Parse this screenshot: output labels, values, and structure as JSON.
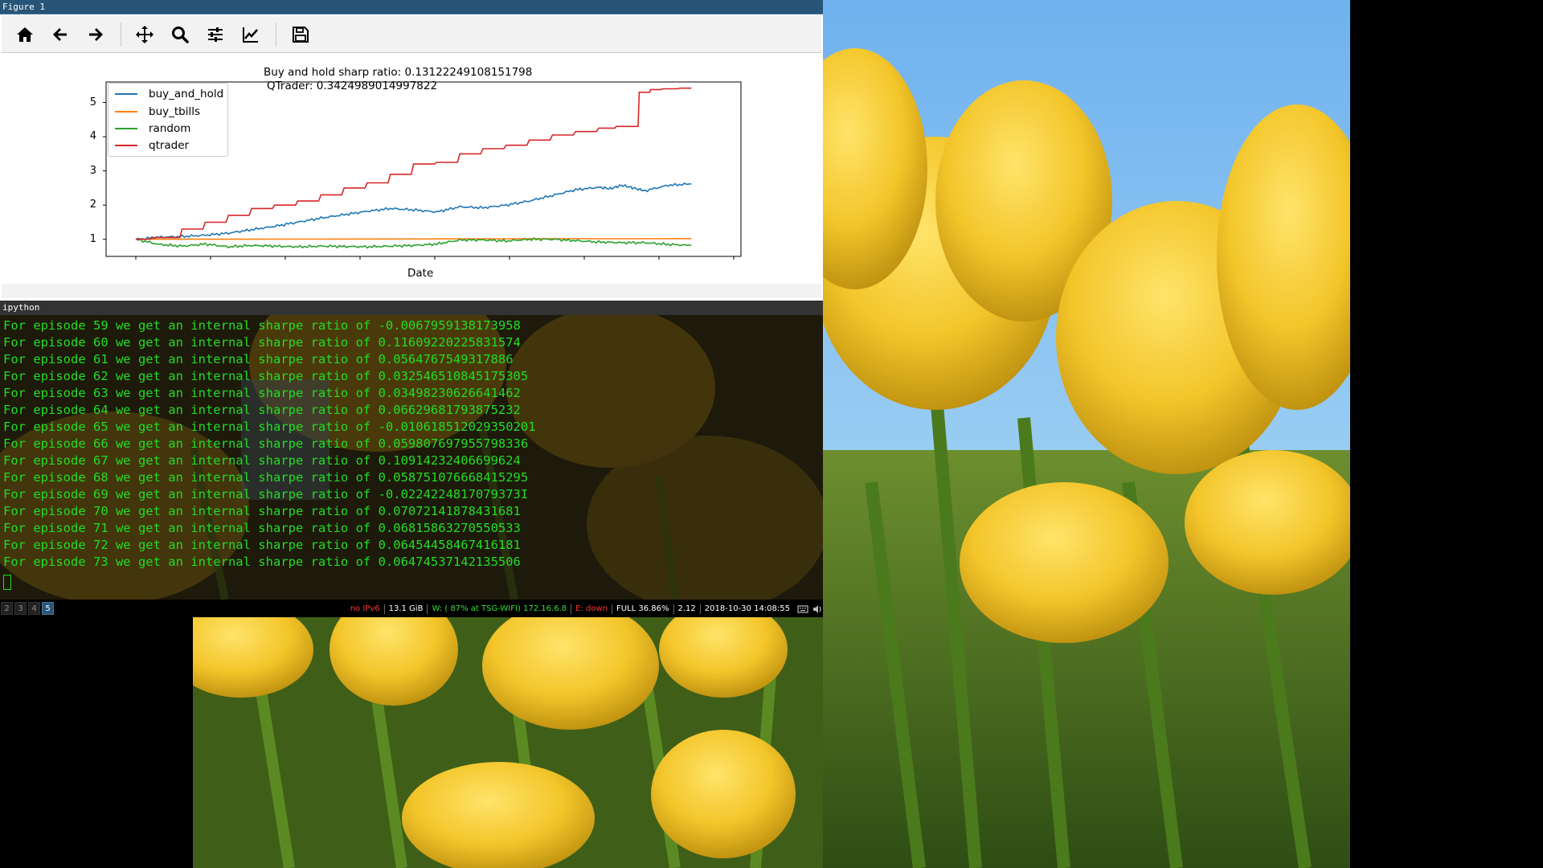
{
  "figure_window": {
    "title": "Figure 1",
    "toolbar": [
      {
        "icon": "home-icon",
        "label": "Home"
      },
      {
        "icon": "back-arrow-icon",
        "label": "Back"
      },
      {
        "icon": "forward-arrow-icon",
        "label": "Forward"
      },
      {
        "icon": "pan-move-icon",
        "label": "Pan"
      },
      {
        "icon": "zoom-magnifier-icon",
        "label": "Zoom"
      },
      {
        "icon": "subplots-sliders-icon",
        "label": "Subplots"
      },
      {
        "icon": "edit-curve-icon",
        "label": "Customize"
      },
      {
        "icon": "save-floppy-icon",
        "label": "Save"
      }
    ]
  },
  "chart_data": {
    "type": "line",
    "title": "Buy and hold sharp ratio: 0.13122249108151798",
    "subtitle": "QTrader: 0.3424989014997822",
    "xlabel": "Date",
    "ylabel": "",
    "yticks": [
      1,
      2,
      3,
      4,
      5
    ],
    "ylim": [
      0.5,
      5.6
    ],
    "xlim": [
      0,
      100
    ],
    "xticks_labeled": false,
    "legend_position": "top-left",
    "grid": false,
    "series": [
      {
        "name": "buy_and_hold",
        "color": "#1f77b4",
        "x": [
          0,
          4,
          8,
          12,
          16,
          20,
          24,
          28,
          32,
          36,
          40,
          44,
          48,
          52,
          56,
          60,
          64,
          68,
          72,
          76,
          80,
          82,
          84,
          86,
          88,
          92,
          96
        ],
        "y": [
          1.0,
          1.06,
          1.08,
          1.12,
          1.18,
          1.28,
          1.38,
          1.5,
          1.62,
          1.72,
          1.82,
          1.9,
          1.86,
          1.8,
          1.95,
          1.92,
          2.0,
          2.12,
          2.28,
          2.45,
          2.52,
          2.48,
          2.58,
          2.5,
          2.42,
          2.58,
          2.62
        ]
      },
      {
        "name": "buy_tbills",
        "color": "#ff7f0e",
        "x": [
          0,
          96
        ],
        "y": [
          1.0,
          1.02
        ]
      },
      {
        "name": "random",
        "color": "#2ca02c",
        "x": [
          0,
          4,
          8,
          12,
          16,
          20,
          24,
          28,
          32,
          36,
          40,
          44,
          48,
          52,
          56,
          60,
          64,
          68,
          72,
          76,
          80,
          84,
          88,
          92,
          96
        ],
        "y": [
          1.0,
          0.85,
          0.8,
          0.86,
          0.78,
          0.82,
          0.8,
          0.78,
          0.8,
          0.79,
          0.78,
          0.8,
          0.82,
          0.86,
          0.98,
          0.98,
          0.95,
          1.0,
          1.0,
          0.96,
          0.92,
          0.9,
          0.9,
          0.85,
          0.82
        ]
      },
      {
        "name": "qtrader",
        "color": "#d62728",
        "x": [
          0,
          6,
          10,
          14,
          18,
          22,
          26,
          30,
          34,
          38,
          42,
          46,
          50,
          54,
          58,
          62,
          66,
          70,
          74,
          78,
          82,
          84,
          86,
          88,
          90,
          92,
          96
        ],
        "y": [
          1.0,
          1.05,
          1.3,
          1.5,
          1.7,
          1.9,
          2.0,
          2.12,
          2.3,
          2.5,
          2.65,
          2.9,
          3.2,
          3.25,
          3.5,
          3.65,
          3.75,
          3.9,
          4.05,
          4.15,
          4.25,
          4.3,
          4.3,
          5.3,
          5.38,
          5.4,
          5.42
        ]
      }
    ]
  },
  "terminal": {
    "title": "ipython",
    "lines": [
      "For episode 59 we get an internal sharpe ratio of -0.0067959138173958",
      "For episode 60 we get an internal sharpe ratio of 0.11609220225831574",
      "For episode 61 we get an internal sharpe ratio of 0.0564767549317886",
      "For episode 62 we get an internal sharpe ratio of 0.032546510845175305",
      "For episode 63 we get an internal sharpe ratio of 0.03498230626641462",
      "For episode 64 we get an internal sharpe ratio of 0.06629681793875232",
      "For episode 65 we get an internal sharpe ratio of -0.010618512029350201",
      "For episode 66 we get an internal sharpe ratio of 0.059807697955798336",
      "For episode 67 we get an internal sharpe ratio of 0.10914232406699624",
      "For episode 68 we get an internal sharpe ratio of 0.058751076668415295",
      "For episode 69 we get an internal sharpe ratio of -0.0224224817079373I",
      "For episode 70 we get an internal sharpe ratio of 0.07072141878431681",
      "For episode 71 we get an internal sharpe ratio of 0.06815863270550533",
      "For episode 72 we get an internal sharpe ratio of 0.06454458467416181",
      "For episode 73 we get an internal sharpe ratio of 0.06474537142135506"
    ],
    "text_color": "#22dd22"
  },
  "statusbar": {
    "workspaces": [
      {
        "label": "2",
        "active": false
      },
      {
        "label": "3",
        "active": false
      },
      {
        "label": "4",
        "active": false
      },
      {
        "label": "5",
        "active": true
      }
    ],
    "items": [
      {
        "text": "no IPv6",
        "color": "#ff3333"
      },
      {
        "text": "13.1 GiB",
        "color": "#ffffff"
      },
      {
        "text": "W: ( 87% at TSG-WIFI) 172.16.6.8",
        "color": "#33dd33"
      },
      {
        "text": "E: down",
        "color": "#ff3333"
      },
      {
        "text": "FULL 36.86%",
        "color": "#ffffff"
      },
      {
        "text": "2.12",
        "color": "#ffffff"
      },
      {
        "text": "2018-10-30 14:08:55",
        "color": "#ffffff"
      }
    ],
    "tray_icons": [
      "keyboard-icon",
      "volume-icon"
    ]
  }
}
